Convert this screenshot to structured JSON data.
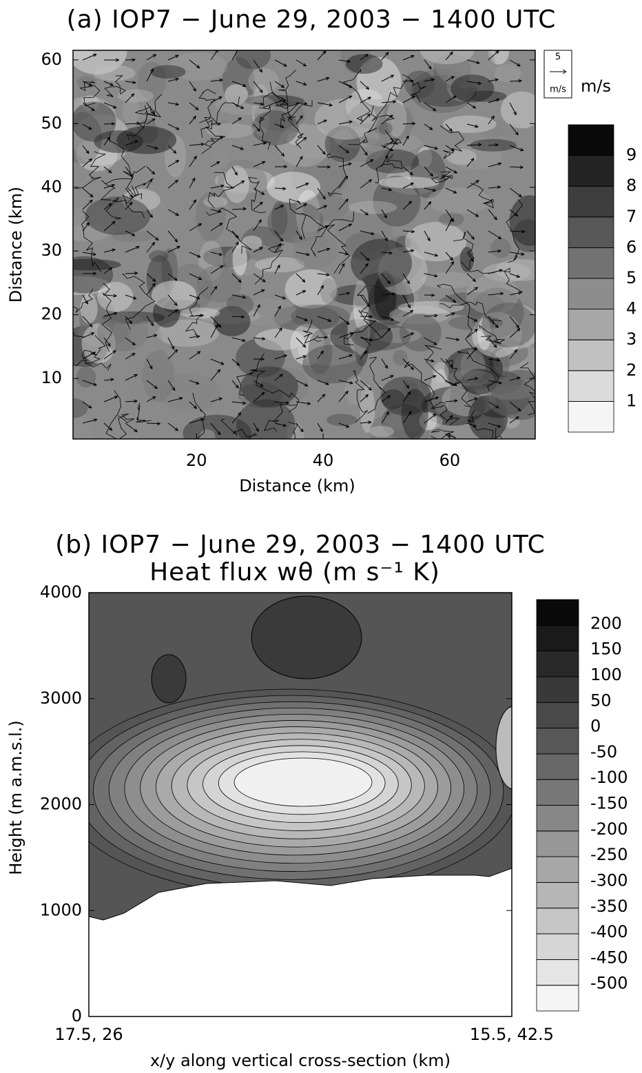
{
  "chart_data": [
    {
      "type": "contour",
      "title": "(a) IOP7 − June 29, 2003 − 1400 UTC",
      "xlabel": "Distance (km)",
      "ylabel": "Distance (km)",
      "xlim": [
        0.5,
        73.5
      ],
      "xticks": [
        20,
        40,
        60
      ],
      "ylim": [
        0.5,
        61.5
      ],
      "yticks": [
        10,
        20,
        30,
        40,
        50,
        60
      ],
      "clim": [
        0,
        10
      ],
      "cticks": [
        1,
        2,
        3,
        4,
        5,
        6,
        7,
        8,
        9
      ],
      "vector_scale": 5,
      "vector_key_unit": "m/s",
      "colorbar_unit": "m/s"
    },
    {
      "type": "contour",
      "title": "(b) IOP7 − June 29, 2003 − 1400 UTC",
      "subtitle": "Heat flux wθ (m s⁻¹ K)",
      "xlabel": "x/y along vertical cross-section (km)",
      "ylabel": "Height (m a.m.s.l.)",
      "xtick_labels": [
        "17.5, 26",
        "15.5, 42.5"
      ],
      "ylim": [
        0,
        4000
      ],
      "yticks": [
        0,
        1000,
        2000,
        3000,
        4000
      ],
      "clim": [
        -550,
        250
      ],
      "cticks": [
        -500,
        -450,
        -400,
        -350,
        -300,
        -250,
        -200,
        -150,
        -100,
        -50,
        0,
        50,
        100,
        150,
        200
      ]
    }
  ]
}
